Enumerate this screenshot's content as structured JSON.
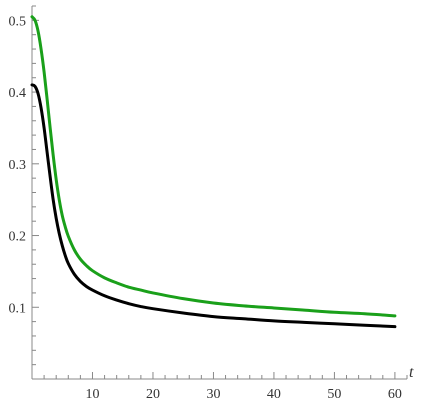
{
  "chart_data": {
    "type": "line",
    "title": "",
    "xlabel": "t",
    "ylabel": "",
    "xlim": [
      0,
      62
    ],
    "ylim": [
      0,
      0.52
    ],
    "grid": false,
    "legend": "none",
    "x_ticks": [
      10,
      20,
      30,
      40,
      50,
      60
    ],
    "x_tick_labels": [
      "10",
      "20",
      "30",
      "40",
      "50",
      "60"
    ],
    "y_ticks": [
      0.1,
      0.2,
      0.3,
      0.4,
      0.5
    ],
    "y_tick_labels": [
      "0.1",
      "0.2",
      "0.3",
      "0.4",
      "0.5"
    ],
    "series": [
      {
        "color": "#1aa01a",
        "x": [
          0,
          0.5,
          1,
          1.5,
          2,
          2.5,
          3,
          3.5,
          4,
          4.5,
          5,
          5.5,
          6,
          7,
          8,
          9,
          10,
          12,
          14,
          16,
          18,
          20,
          25,
          30,
          35,
          40,
          45,
          50,
          55,
          60
        ],
        "y": [
          0.505,
          0.5,
          0.485,
          0.46,
          0.428,
          0.39,
          0.35,
          0.312,
          0.278,
          0.25,
          0.228,
          0.212,
          0.199,
          0.18,
          0.167,
          0.158,
          0.151,
          0.141,
          0.134,
          0.128,
          0.124,
          0.12,
          0.112,
          0.106,
          0.102,
          0.099,
          0.096,
          0.093,
          0.091,
          0.088
        ]
      },
      {
        "color": "#000000",
        "x": [
          0,
          0.5,
          1,
          1.5,
          2,
          2.5,
          3,
          3.5,
          4,
          4.5,
          5,
          5.5,
          6,
          7,
          8,
          9,
          10,
          12,
          14,
          16,
          18,
          20,
          25,
          30,
          35,
          40,
          45,
          50,
          55,
          60
        ],
        "y": [
          0.41,
          0.408,
          0.398,
          0.378,
          0.35,
          0.316,
          0.282,
          0.25,
          0.224,
          0.203,
          0.186,
          0.172,
          0.161,
          0.146,
          0.136,
          0.129,
          0.124,
          0.116,
          0.11,
          0.105,
          0.101,
          0.098,
          0.092,
          0.087,
          0.084,
          0.081,
          0.079,
          0.077,
          0.075,
          0.073
        ]
      }
    ]
  }
}
